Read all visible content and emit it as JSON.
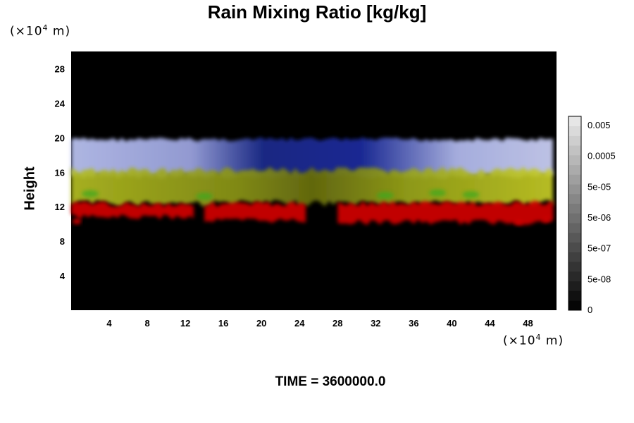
{
  "chart_data": {
    "type": "heatmap",
    "title": "Rain Mixing Ratio [kg/kg]",
    "ylabel": "Height",
    "x_unit": "(×10",
    "x_unit_exp": "4",
    "x_unit_suffix": " m)",
    "y_unit": "(×10",
    "y_unit_exp": "4",
    "y_unit_suffix": " m)",
    "xlim": [
      0,
      51
    ],
    "ylim": [
      0,
      30
    ],
    "x_ticks": [
      "4",
      "8",
      "12",
      "16",
      "20",
      "24",
      "28",
      "32",
      "36",
      "40",
      "44",
      "48"
    ],
    "x_tick_values": [
      4,
      8,
      12,
      16,
      20,
      24,
      28,
      32,
      36,
      40,
      44,
      48
    ],
    "y_ticks": [
      "4",
      "8",
      "12",
      "16",
      "20",
      "24",
      "28"
    ],
    "y_tick_values": [
      4,
      8,
      12,
      16,
      20,
      24,
      28
    ],
    "colorbar": {
      "labels": [
        "0",
        "5e-08",
        "5e-07",
        "5e-06",
        "5e-05",
        "0.0005",
        "0.005"
      ],
      "levels": 20
    },
    "bands": [
      {
        "color": "#cc0000",
        "y_bottom": 10,
        "y_top": 12.5
      },
      {
        "color": "#a8b020",
        "y_bottom": 12.5,
        "y_top": 16
      },
      {
        "color": "#3344bb",
        "y_bottom": 15.5,
        "y_top": 20
      },
      {
        "color": "#c8ccee",
        "y_bottom": 16,
        "y_top": 20
      }
    ],
    "time_label": "TIME = 3600000.0"
  }
}
